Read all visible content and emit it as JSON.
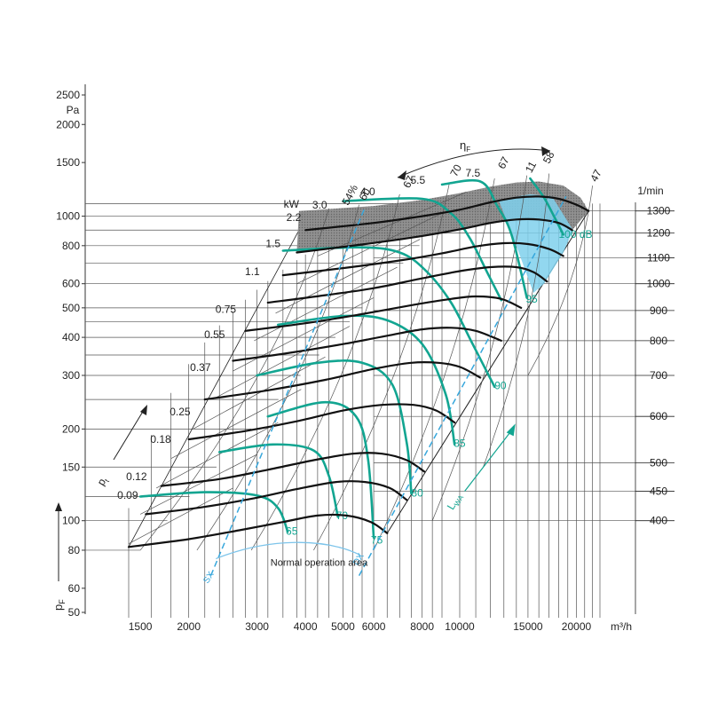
{
  "chart_data": {
    "type": "line",
    "title": "",
    "xlabel": "m³/h",
    "ylabel": "p",
    "ylabel_sub": "F",
    "y_unit": "Pa",
    "x_scale": "log",
    "y_scale": "log",
    "xlim": [
      1350,
      25000
    ],
    "ylim": [
      50,
      2700
    ],
    "x_ticks": [
      1500,
      2000,
      3000,
      4000,
      5000,
      6000,
      8000,
      10000,
      15000,
      20000
    ],
    "x_tick_labels": [
      "1500",
      "2000",
      "3000",
      "4000",
      "5000",
      "6000",
      "8000",
      "10000",
      "15000",
      "20000"
    ],
    "y_ticks": [
      50,
      60,
      80,
      100,
      150,
      200,
      300,
      400,
      500,
      600,
      800,
      1000,
      1500,
      2000,
      2500
    ],
    "y_tick_labels": [
      "50",
      "60",
      "80",
      "100",
      "150",
      "200",
      "300",
      "400",
      "500",
      "600",
      "800",
      "1000",
      "1500",
      "2000",
      "2500"
    ],
    "rpm_axis": {
      "unit": "1/min",
      "labels": [
        "1300",
        "1200",
        "1100",
        "1000",
        "900",
        "800",
        "700",
        "600",
        "500",
        "450",
        "400"
      ],
      "pressure": [
        1040,
        880,
        730,
        600,
        490,
        390,
        300,
        220,
        155,
        125,
        100
      ]
    },
    "speed_curves": [
      {
        "rpm": 1300,
        "x": [
          4000,
          6000,
          8000,
          10000,
          12000,
          14000,
          16000,
          18000,
          20000,
          21500
        ],
        "y": [
          900,
          950,
          1000,
          1050,
          1110,
          1150,
          1160,
          1140,
          1090,
          1040
        ]
      },
      {
        "rpm": 1200,
        "x": [
          3800,
          5500,
          7500,
          10000,
          12000,
          14000,
          16000,
          18000,
          19500
        ],
        "y": [
          760,
          805,
          850,
          905,
          950,
          975,
          975,
          950,
          900
        ]
      },
      {
        "rpm": 1100,
        "x": [
          3500,
          5000,
          7000,
          9000,
          11000,
          13000,
          15000,
          17000,
          18500
        ],
        "y": [
          640,
          675,
          715,
          755,
          795,
          815,
          810,
          780,
          740
        ]
      },
      {
        "rpm": 1000,
        "x": [
          3200,
          4500,
          6000,
          8000,
          10000,
          12000,
          14000,
          15500,
          16800
        ],
        "y": [
          520,
          550,
          580,
          625,
          660,
          680,
          680,
          655,
          610
        ]
      },
      {
        "rpm": 900,
        "x": [
          2800,
          4000,
          5500,
          7500,
          9500,
          11000,
          12800,
          14400
        ],
        "y": [
          420,
          445,
          475,
          510,
          535,
          545,
          535,
          500
        ]
      },
      {
        "rpm": 800,
        "x": [
          2600,
          3600,
          5000,
          6500,
          8000,
          9500,
          11000,
          12800
        ],
        "y": [
          335,
          355,
          380,
          405,
          425,
          430,
          420,
          390
        ]
      },
      {
        "rpm": 700,
        "x": [
          2200,
          3200,
          4500,
          6000,
          7500,
          8800,
          10000,
          11300
        ],
        "y": [
          250,
          268,
          290,
          315,
          330,
          330,
          320,
          295
        ]
      },
      {
        "rpm": 600,
        "x": [
          2000,
          2800,
          3800,
          5000,
          6300,
          7600,
          8700,
          9700
        ],
        "y": [
          185,
          197,
          212,
          230,
          240,
          240,
          230,
          210
        ]
      },
      {
        "rpm": 500,
        "x": [
          1700,
          2400,
          3200,
          4200,
          5300,
          6300,
          7300,
          8100
        ],
        "y": [
          130,
          137,
          147,
          158,
          166,
          166,
          158,
          145
        ]
      },
      {
        "rpm": 450,
        "x": [
          1550,
          2200,
          3000,
          3800,
          4800,
          5700,
          6600,
          7300
        ],
        "y": [
          105,
          111,
          119,
          127,
          134,
          134,
          128,
          117
        ]
      },
      {
        "rpm": 400,
        "x": [
          1400,
          2000,
          2700,
          3500,
          4300,
          5100,
          5900,
          6500
        ],
        "y": [
          82,
          87,
          93,
          99,
          104,
          104,
          99,
          91
        ]
      }
    ],
    "power_labels": {
      "unit": "kW",
      "items": [
        {
          "label": "0.09",
          "x": 1480,
          "y": 118
        },
        {
          "label": "0.12",
          "x": 1560,
          "y": 136
        },
        {
          "label": "0.18",
          "x": 1800,
          "y": 180
        },
        {
          "label": "0.25",
          "x": 2020,
          "y": 222
        },
        {
          "label": "0.37",
          "x": 2280,
          "y": 310
        },
        {
          "label": "0.55",
          "x": 2480,
          "y": 398
        },
        {
          "label": "0.75",
          "x": 2650,
          "y": 482
        },
        {
          "label": "1.1",
          "x": 3050,
          "y": 640
        },
        {
          "label": "1.5",
          "x": 3450,
          "y": 790
        },
        {
          "label": "2.2",
          "x": 3900,
          "y": 965
        },
        {
          "label": "3.0",
          "x": 4550,
          "y": 1060
        },
        {
          "label": "4.0",
          "x": 6050,
          "y": 1170
        },
        {
          "label": "5.5",
          "x": 8150,
          "y": 1280
        },
        {
          "label": "7.5",
          "x": 11300,
          "y": 1350
        }
      ]
    },
    "efficiency_labels": {
      "symbol": "η",
      "symbol_sub": "F",
      "items": [
        {
          "label": "54%",
          "x": 5150,
          "y": 1080
        },
        {
          "label": "60",
          "x": 5700,
          "y": 1120
        },
        {
          "label": "67",
          "x": 7400,
          "y": 1230
        },
        {
          "label": "70",
          "x": 9800,
          "y": 1340
        },
        {
          "label": "67",
          "x": 13000,
          "y": 1420
        },
        {
          "label": "58",
          "x": 17000,
          "y": 1480
        },
        {
          "label": "47",
          "x": 22500,
          "y": 1290
        },
        {
          "label": "11",
          "x": 15300,
          "y": 1380
        }
      ]
    },
    "sound_curves": {
      "symbol": "L",
      "symbol_sub": "WA",
      "color": "#12a591",
      "labels": [
        {
          "label": "65",
          "x": 3560,
          "y": 90
        },
        {
          "label": "70",
          "x": 4800,
          "y": 101
        },
        {
          "label": "75",
          "x": 5900,
          "y": 84
        },
        {
          "label": "80",
          "x": 7500,
          "y": 120
        },
        {
          "label": "85",
          "x": 9650,
          "y": 175
        },
        {
          "label": "90",
          "x": 12300,
          "y": 270
        },
        {
          "label": "95",
          "x": 14800,
          "y": 520
        },
        {
          "label": "100 dB",
          "x": 18000,
          "y": 850
        }
      ]
    },
    "annotations": {
      "pt": "p",
      "pt_sub": "t",
      "normal_operation_area": "Normal operation area",
      "sx": "SX",
      "dx": "DX"
    },
    "colors": {
      "speed_curve": "#111111",
      "grid": "#555555",
      "sound": "#12a591",
      "dashed": "#37a7dc",
      "shade_dark": "#7c7c7c",
      "shade_blue": "#7fd0ec",
      "operation_curve": "#7dc4ea"
    }
  }
}
